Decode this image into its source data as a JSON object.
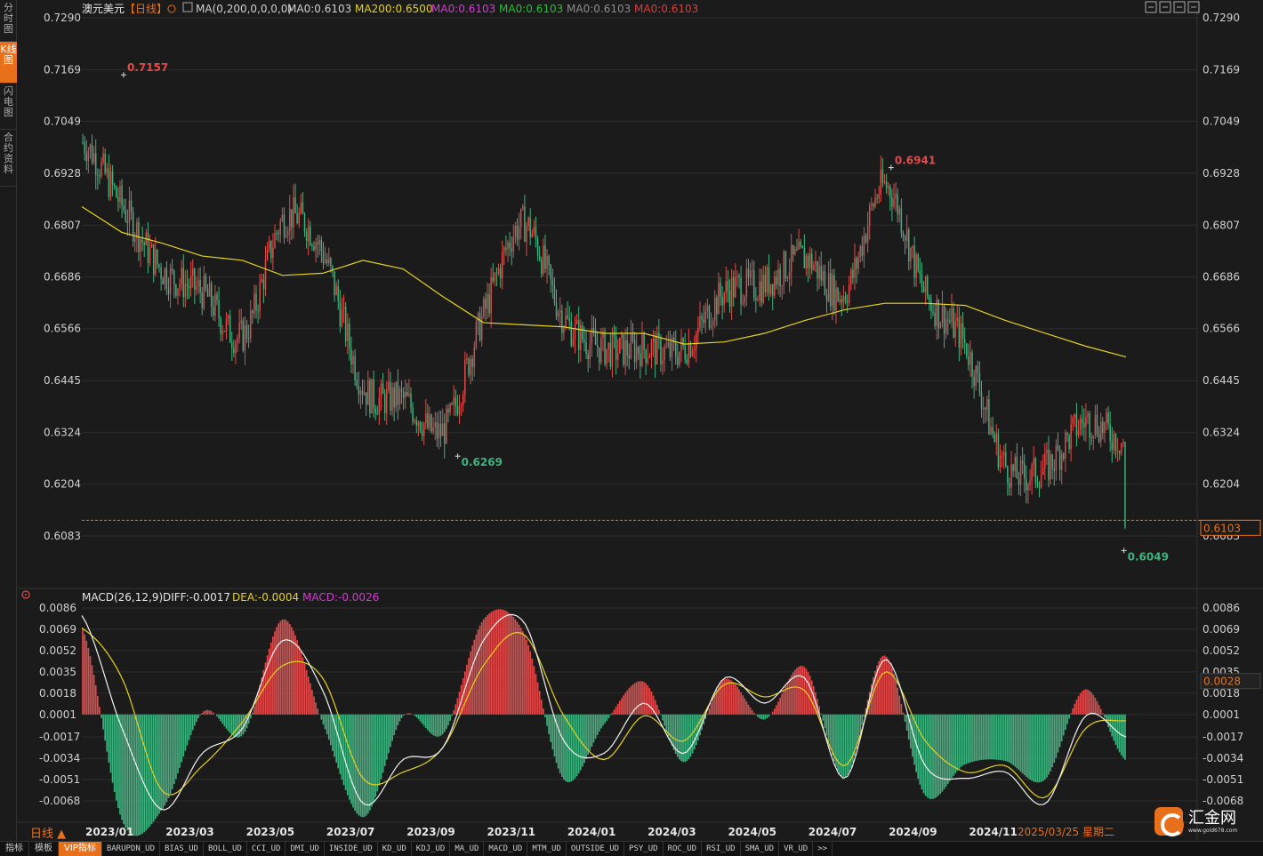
{
  "sidebar": {
    "tabs": [
      {
        "label": "分时图",
        "active": false
      },
      {
        "label": "K线图",
        "active": true
      },
      {
        "label": "闪电图",
        "active": false
      },
      {
        "label": "合约资料",
        "active": false
      }
    ]
  },
  "main_header": {
    "symbol": "澳元美元",
    "period": "【日线】",
    "period_icon": "target-icon",
    "ma_icon": "ma-settings-icon",
    "indicators": [
      {
        "text": "MA(0,200,0,0,0,0)",
        "color": "#cfcfcf"
      },
      {
        "text": "MA0:0.6103",
        "color": "#cfcfcf"
      },
      {
        "text": "MA200:0.6500",
        "color": "#e6d21e"
      },
      {
        "text": "MA0:0.6103",
        "color": "#d23ad2"
      },
      {
        "text": "MA0:0.6103",
        "color": "#22c032"
      },
      {
        "text": "MA0:0.6103",
        "color": "#8c8c8c"
      },
      {
        "text": "MA0:0.6103",
        "color": "#e03a3a"
      }
    ]
  },
  "toolbar_icons": [
    "crosshair-icon",
    "expand-icon",
    "next-icon",
    "layout-icon"
  ],
  "macd_header": {
    "label": "MACD(26,12,9)",
    "diff": "DIFF:-0.0017",
    "dea": "DEA:-0.0004",
    "macd": "MACD:-0.0026",
    "icon": "indicator-target-icon"
  },
  "colors": {
    "up": "#e14b4b",
    "down": "#3fb27f",
    "ma200": "#e6d21e",
    "dea": "#e6d21e",
    "diff": "#f2f2f2",
    "macd_label": "#d23ad2",
    "accent": "#e8701a",
    "current_price_line": "#e8701a"
  },
  "chart_data": [
    {
      "type": "candlestick",
      "title": "澳元美元 日线",
      "x_tick_labels": [
        "2023/01",
        "2023/03",
        "2023/05",
        "2023/07",
        "2023/09",
        "2023/11",
        "2024/01",
        "2024/03",
        "2024/05",
        "2024/07",
        "2024/09",
        "2024/11",
        "2025/03/25 星期二"
      ],
      "y_tick_labels": [
        "0.7290",
        "0.7169",
        "0.7049",
        "0.6928",
        "0.6807",
        "0.6686",
        "0.6566",
        "0.6445",
        "0.6324",
        "0.6204",
        "0.6083"
      ],
      "ylim": [
        0.6049,
        0.729
      ],
      "annotations": [
        {
          "label": "0.7157",
          "kind": "high"
        },
        {
          "label": "0.6941",
          "kind": "high"
        },
        {
          "label": "0.6269",
          "kind": "low"
        },
        {
          "label": "0.6049",
          "kind": "low"
        }
      ],
      "current_price": "0.6103",
      "series": [
        {
          "name": "MA200",
          "values_by_month": [
            {
              "x": "2023/01",
              "y": 0.685
            },
            {
              "x": "2023/02",
              "y": 0.679
            },
            {
              "x": "2023/03",
              "y": 0.6765
            },
            {
              "x": "2023/04",
              "y": 0.6735
            },
            {
              "x": "2023/05",
              "y": 0.6725
            },
            {
              "x": "2023/06",
              "y": 0.669
            },
            {
              "x": "2023/07",
              "y": 0.6695
            },
            {
              "x": "2023/08",
              "y": 0.6725
            },
            {
              "x": "2023/09",
              "y": 0.6705
            },
            {
              "x": "2023/10",
              "y": 0.664
            },
            {
              "x": "2023/11",
              "y": 0.658
            },
            {
              "x": "2023/12",
              "y": 0.6575
            },
            {
              "x": "2024/01",
              "y": 0.657
            },
            {
              "x": "2024/02",
              "y": 0.6555
            },
            {
              "x": "2024/03",
              "y": 0.6555
            },
            {
              "x": "2024/04",
              "y": 0.653
            },
            {
              "x": "2024/05",
              "y": 0.6535
            },
            {
              "x": "2024/06",
              "y": 0.6555
            },
            {
              "x": "2024/07",
              "y": 0.6585
            },
            {
              "x": "2024/08",
              "y": 0.661
            },
            {
              "x": "2024/09",
              "y": 0.6625
            },
            {
              "x": "2024/10",
              "y": 0.6625
            },
            {
              "x": "2024/11",
              "y": 0.662
            },
            {
              "x": "2024/12",
              "y": 0.6585
            },
            {
              "x": "2025/01",
              "y": 0.6555
            },
            {
              "x": "2025/02",
              "y": 0.6525
            },
            {
              "x": "2025/03",
              "y": 0.65
            }
          ]
        },
        {
          "name": "Close (approx.)",
          "values_by_month": [
            {
              "x": "2023/01",
              "y": 0.7
            },
            {
              "x": "2023/02",
              "y": 0.685
            },
            {
              "x": "2023/03",
              "y": 0.67
            },
            {
              "x": "2023/04",
              "y": 0.665
            },
            {
              "x": "2023/05",
              "y": 0.655
            },
            {
              "x": "2023/06",
              "y": 0.682
            },
            {
              "x": "2023/07",
              "y": 0.674
            },
            {
              "x": "2023/08",
              "y": 0.643
            },
            {
              "x": "2023/09",
              "y": 0.64
            },
            {
              "x": "2023/10",
              "y": 0.633
            },
            {
              "x": "2023/11",
              "y": 0.66
            },
            {
              "x": "2023/12",
              "y": 0.681
            },
            {
              "x": "2024/01",
              "y": 0.659
            },
            {
              "x": "2024/02",
              "y": 0.652
            },
            {
              "x": "2024/03",
              "y": 0.652
            },
            {
              "x": "2024/04",
              "y": 0.652
            },
            {
              "x": "2024/05",
              "y": 0.665
            },
            {
              "x": "2024/06",
              "y": 0.667
            },
            {
              "x": "2024/07",
              "y": 0.673
            },
            {
              "x": "2024/08",
              "y": 0.665
            },
            {
              "x": "2024/09",
              "y": 0.69
            },
            {
              "x": "2024/10",
              "y": 0.665
            },
            {
              "x": "2024/11",
              "y": 0.653
            },
            {
              "x": "2024/12",
              "y": 0.625
            },
            {
              "x": "2025/01",
              "y": 0.624
            },
            {
              "x": "2025/02",
              "y": 0.635
            },
            {
              "x": "2025/03",
              "y": 0.63
            }
          ]
        }
      ]
    },
    {
      "type": "macd",
      "title": "MACD(26,12,9)",
      "y_tick_labels": [
        "0.0086",
        "0.0069",
        "0.0052",
        "0.0035",
        "0.0018",
        "0.0001",
        "-0.0017",
        "-0.0034",
        "-0.0051",
        "-0.0068"
      ],
      "ylim": [
        -0.0085,
        0.0089
      ],
      "current_value": "0.0028",
      "series": [
        {
          "name": "DIFF",
          "values_by_month": [
            {
              "x": "2023/01",
              "y": 0.008
            },
            {
              "x": "2023/02",
              "y": -0.001
            },
            {
              "x": "2023/03",
              "y": -0.0075
            },
            {
              "x": "2023/04",
              "y": -0.003
            },
            {
              "x": "2023/05",
              "y": -0.001
            },
            {
              "x": "2023/06",
              "y": 0.006
            },
            {
              "x": "2023/07",
              "y": 0.002
            },
            {
              "x": "2023/08",
              "y": -0.007
            },
            {
              "x": "2023/09",
              "y": -0.0035
            },
            {
              "x": "2023/10",
              "y": -0.0025
            },
            {
              "x": "2023/11",
              "y": 0.006
            },
            {
              "x": "2023/12",
              "y": 0.0075
            },
            {
              "x": "2024/01",
              "y": -0.002
            },
            {
              "x": "2024/02",
              "y": -0.003
            },
            {
              "x": "2024/03",
              "y": 0.001
            },
            {
              "x": "2024/04",
              "y": -0.003
            },
            {
              "x": "2024/05",
              "y": 0.003
            },
            {
              "x": "2024/06",
              "y": 0.001
            },
            {
              "x": "2024/07",
              "y": 0.003
            },
            {
              "x": "2024/08",
              "y": -0.005
            },
            {
              "x": "2024/09",
              "y": 0.0045
            },
            {
              "x": "2024/10",
              "y": -0.004
            },
            {
              "x": "2024/11",
              "y": -0.005
            },
            {
              "x": "2024/12",
              "y": -0.0045
            },
            {
              "x": "2025/01",
              "y": -0.007
            },
            {
              "x": "2025/02",
              "y": 0.0
            },
            {
              "x": "2025/03",
              "y": -0.0017
            }
          ]
        },
        {
          "name": "DEA",
          "values_by_month": [
            {
              "x": "2023/01",
              "y": 0.007
            },
            {
              "x": "2023/02",
              "y": 0.003
            },
            {
              "x": "2023/03",
              "y": -0.006
            },
            {
              "x": "2023/04",
              "y": -0.004
            },
            {
              "x": "2023/05",
              "y": -0.0005
            },
            {
              "x": "2023/06",
              "y": 0.004
            },
            {
              "x": "2023/07",
              "y": 0.003
            },
            {
              "x": "2023/08",
              "y": -0.005
            },
            {
              "x": "2023/09",
              "y": -0.0045
            },
            {
              "x": "2023/10",
              "y": -0.0025
            },
            {
              "x": "2023/11",
              "y": 0.004
            },
            {
              "x": "2023/12",
              "y": 0.0065
            },
            {
              "x": "2024/01",
              "y": 0.0
            },
            {
              "x": "2024/02",
              "y": -0.0035
            },
            {
              "x": "2024/03",
              "y": 0.0
            },
            {
              "x": "2024/04",
              "y": -0.002
            },
            {
              "x": "2024/05",
              "y": 0.0025
            },
            {
              "x": "2024/06",
              "y": 0.0015
            },
            {
              "x": "2024/07",
              "y": 0.002
            },
            {
              "x": "2024/08",
              "y": -0.004
            },
            {
              "x": "2024/09",
              "y": 0.0035
            },
            {
              "x": "2024/10",
              "y": -0.002
            },
            {
              "x": "2024/11",
              "y": -0.0045
            },
            {
              "x": "2024/12",
              "y": -0.004
            },
            {
              "x": "2025/01",
              "y": -0.0065
            },
            {
              "x": "2025/02",
              "y": -0.001
            },
            {
              "x": "2025/03",
              "y": -0.0004
            }
          ]
        }
      ]
    }
  ],
  "bottom_bar": {
    "period_label": "日线 ▲",
    "tabs": [
      {
        "label": "指标",
        "active": false,
        "small": false
      },
      {
        "label": "模板",
        "active": false,
        "small": false
      },
      {
        "label": "VIP指标",
        "active": true,
        "small": false
      },
      {
        "label": "BARUPDN_UD",
        "active": false,
        "small": true
      },
      {
        "label": "BIAS_UD",
        "active": false,
        "small": true
      },
      {
        "label": "BOLL_UD",
        "active": false,
        "small": true
      },
      {
        "label": "CCI_UD",
        "active": false,
        "small": true
      },
      {
        "label": "DMI_UD",
        "active": false,
        "small": true
      },
      {
        "label": "INSIDE_UD",
        "active": false,
        "small": true
      },
      {
        "label": "KD_UD",
        "active": false,
        "small": true
      },
      {
        "label": "KDJ_UD",
        "active": false,
        "small": true
      },
      {
        "label": "MA_UD",
        "active": false,
        "small": true
      },
      {
        "label": "MACD_UD",
        "active": false,
        "small": true
      },
      {
        "label": "MTM_UD",
        "active": false,
        "small": true
      },
      {
        "label": "OUTSIDE_UD",
        "active": false,
        "small": true
      },
      {
        "label": "PSY_UD",
        "active": false,
        "small": true
      },
      {
        "label": "ROC_UD",
        "active": false,
        "small": true
      },
      {
        "label": "RSI_UD",
        "active": false,
        "small": true
      },
      {
        "label": "SMA_UD",
        "active": false,
        "small": true
      },
      {
        "label": "VR_UD",
        "active": false,
        "small": true
      },
      {
        "label": ">>",
        "active": false,
        "small": true
      }
    ]
  },
  "logo": {
    "name": "汇金网",
    "url": "www.gold678.com"
  }
}
